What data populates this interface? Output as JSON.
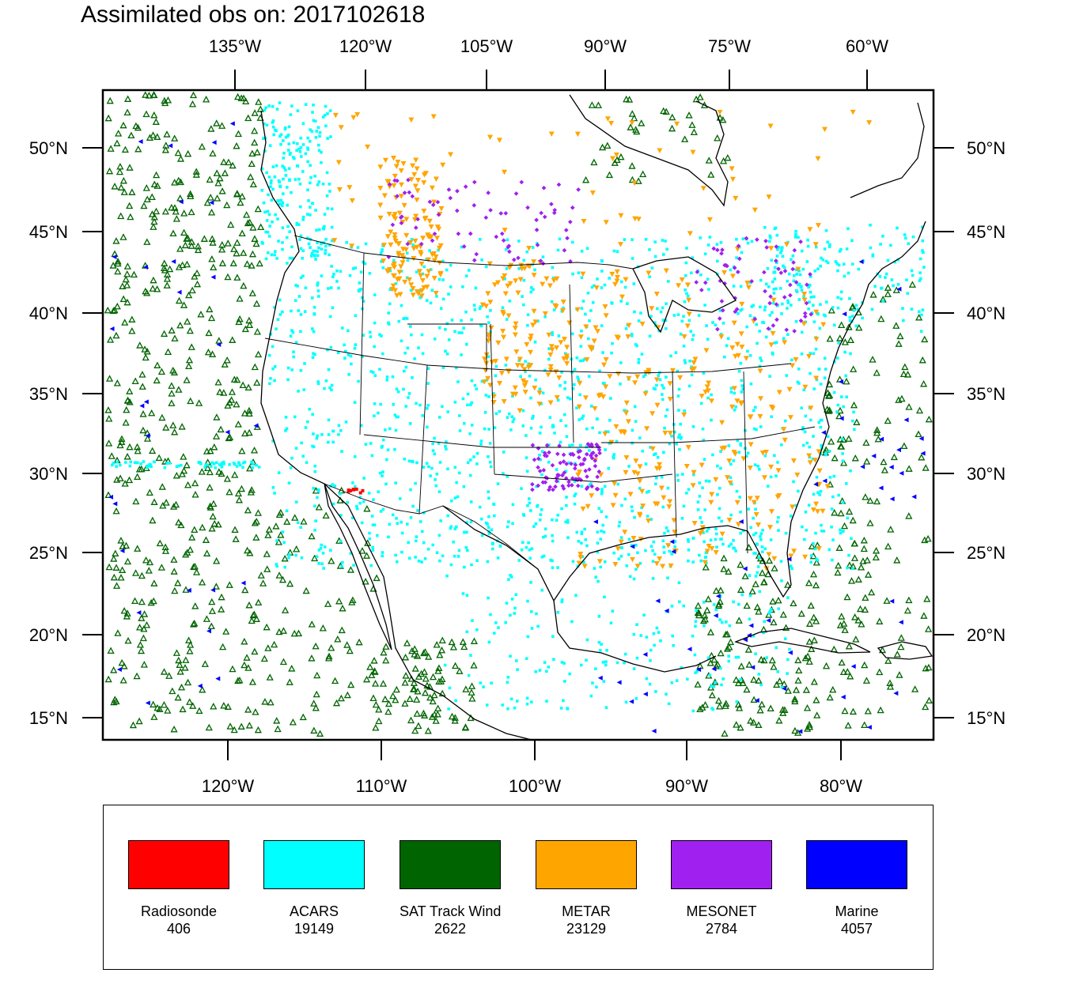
{
  "title": "Assimilated obs on: 2017102618",
  "map": {
    "top_lon_labels": [
      "135°W",
      "120°W",
      "105°W",
      "90°W",
      "75°W",
      "60°W"
    ],
    "bottom_lon_labels": [
      "120°W",
      "110°W",
      "100°W",
      "90°W",
      "80°W"
    ],
    "lat_labels": [
      "50°N",
      "45°N",
      "40°N",
      "35°N",
      "30°N",
      "25°N",
      "20°N",
      "15°N"
    ],
    "lon_range": [
      -128,
      -74
    ],
    "lat_range": [
      14,
      53
    ]
  },
  "legend": [
    {
      "name": "Radiosonde",
      "count": "406",
      "color": "#ff0000"
    },
    {
      "name": "ACARS",
      "count": "19149",
      "color": "#00ffff"
    },
    {
      "name": "SAT Track Wind",
      "count": "2622",
      "color": "#006400"
    },
    {
      "name": "METAR",
      "count": "23129",
      "color": "#ffa500"
    },
    {
      "name": "MESONET",
      "count": "2784",
      "color": "#a020f0"
    },
    {
      "name": "Marine",
      "count": "4057",
      "color": "#0000ff"
    }
  ]
}
